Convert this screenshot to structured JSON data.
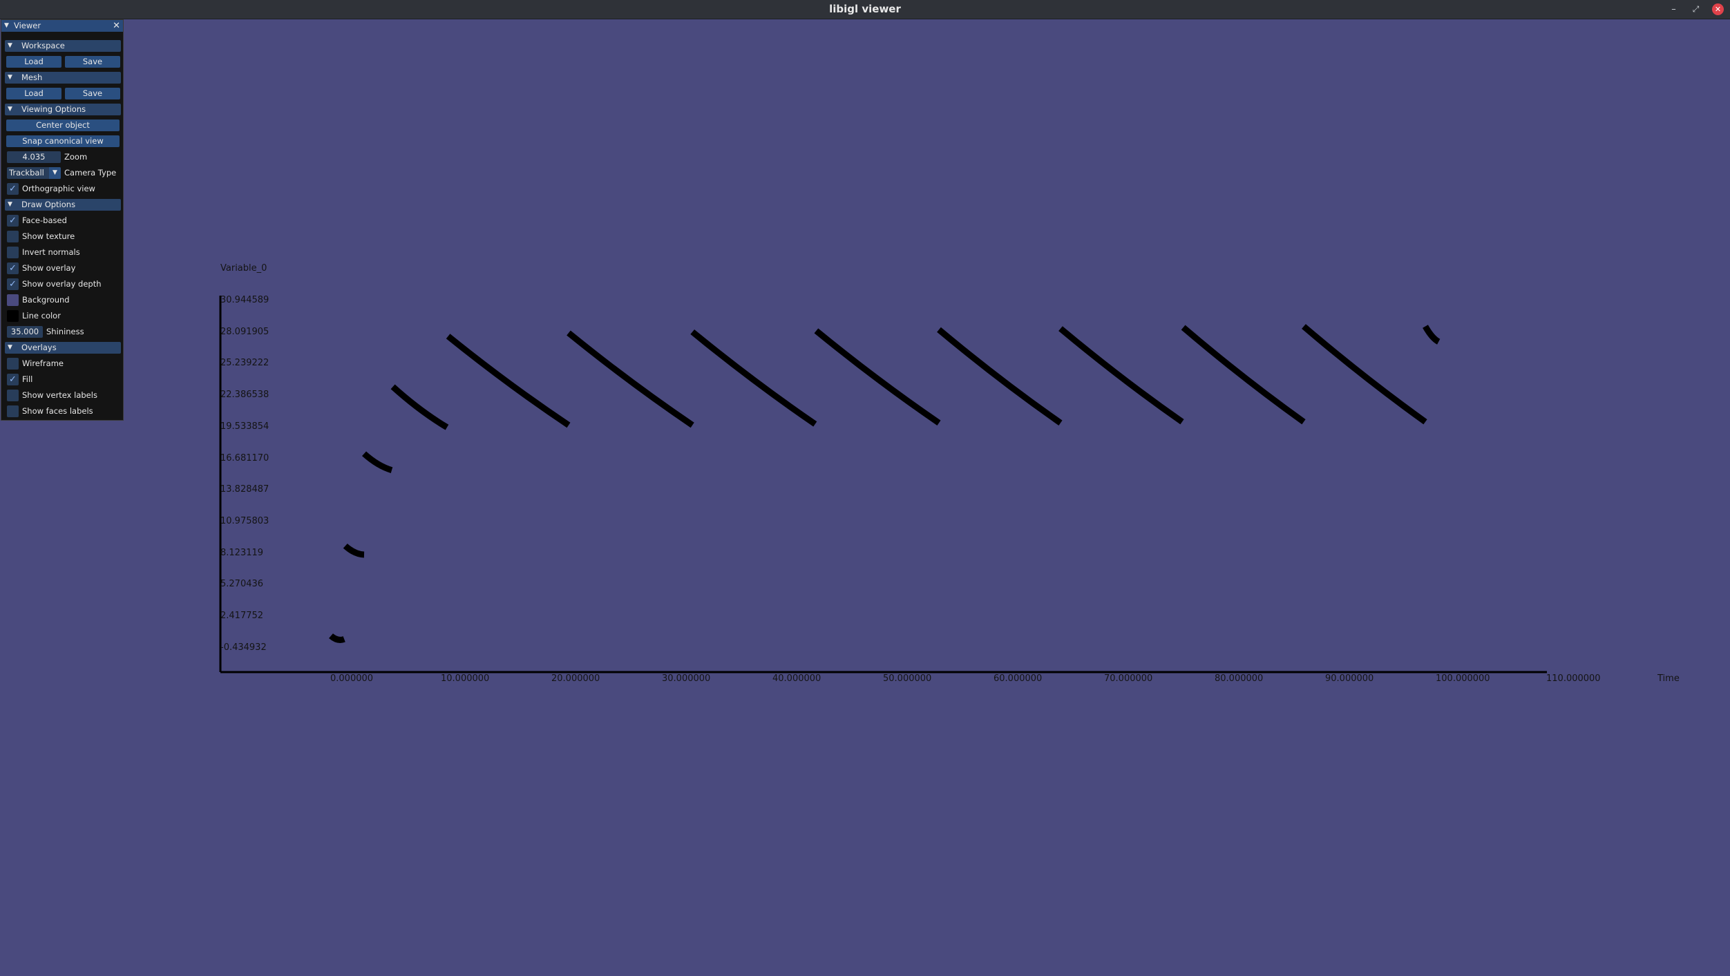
{
  "window": {
    "title": "libigl viewer"
  },
  "panel": {
    "title": "Viewer",
    "workspace": {
      "header": "Workspace",
      "load": "Load",
      "save": "Save"
    },
    "mesh": {
      "header": "Mesh",
      "load": "Load",
      "save": "Save"
    },
    "viewing_options": {
      "header": "Viewing Options",
      "center_object": "Center object",
      "snap_canonical_view": "Snap canonical view",
      "zoom_value": "4.035",
      "zoom_label": "Zoom",
      "camera_type_value": "Trackball",
      "camera_type_label": "Camera Type",
      "orthographic_view": {
        "label": "Orthographic view",
        "checked": true
      }
    },
    "draw_options": {
      "header": "Draw Options",
      "face_based": {
        "label": "Face-based",
        "checked": true
      },
      "show_texture": {
        "label": "Show texture",
        "checked": false
      },
      "invert_normals": {
        "label": "Invert normals",
        "checked": false
      },
      "show_overlay": {
        "label": "Show overlay",
        "checked": true
      },
      "show_overlay_depth": {
        "label": "Show overlay depth",
        "checked": true
      },
      "background": {
        "label": "Background",
        "color": "#4a4a7e"
      },
      "line_color": {
        "label": "Line color",
        "color": "#000000"
      },
      "shininess_value": "35.000",
      "shininess_label": "Shininess"
    },
    "overlays": {
      "header": "Overlays",
      "wireframe": {
        "label": "Wireframe",
        "checked": false
      },
      "fill": {
        "label": "Fill",
        "checked": true
      },
      "show_vertex_labels": {
        "label": "Show vertex labels",
        "checked": false
      },
      "show_faces_labels": {
        "label": "Show faces labels",
        "checked": false
      }
    }
  },
  "chart_data": {
    "type": "line",
    "ylabel": "Variable_0",
    "xlabel": "Time",
    "y_ticks": [
      "30.944589",
      "28.091905",
      "25.239222",
      "22.386538",
      "19.533854",
      "16.681170",
      "13.828487",
      "10.975803",
      "8.123119",
      "5.270436",
      "2.417752",
      "-0.434932"
    ],
    "x_ticks": [
      "0.000000",
      "10.000000",
      "20.000000",
      "30.000000",
      "40.000000",
      "50.000000",
      "60.000000",
      "70.000000",
      "80.000000",
      "90.000000",
      "100.000000",
      "110.000000"
    ],
    "xlim": [
      -10,
      110
    ],
    "ylim": [
      -3.0,
      31.3
    ],
    "segments": [
      [
        [
          0.0,
          0.3
        ],
        [
          1.2,
          0.0
        ]
      ],
      [
        [
          1.3,
          8.5
        ],
        [
          3.0,
          7.7
        ]
      ],
      [
        [
          3.0,
          16.9
        ],
        [
          5.5,
          15.4
        ]
      ],
      [
        [
          5.6,
          23.0
        ],
        [
          10.5,
          19.3
        ]
      ],
      [
        [
          10.6,
          27.6
        ],
        [
          21.5,
          19.5
        ]
      ],
      [
        [
          21.5,
          27.9
        ],
        [
          32.7,
          19.5
        ]
      ],
      [
        [
          32.7,
          28.0
        ],
        [
          43.8,
          19.6
        ]
      ],
      [
        [
          43.9,
          28.1
        ],
        [
          55.0,
          19.7
        ]
      ],
      [
        [
          55.0,
          28.2
        ],
        [
          66.0,
          19.7
        ]
      ],
      [
        [
          66.0,
          28.3
        ],
        [
          77.0,
          19.8
        ]
      ],
      [
        [
          77.1,
          28.4
        ],
        [
          88.0,
          19.8
        ]
      ],
      [
        [
          88.0,
          28.5
        ],
        [
          99.0,
          19.8
        ]
      ],
      [
        [
          99.0,
          28.5
        ],
        [
          100.2,
          27.1
        ]
      ]
    ],
    "grid": false,
    "legend": false,
    "line_color": "#000000"
  }
}
